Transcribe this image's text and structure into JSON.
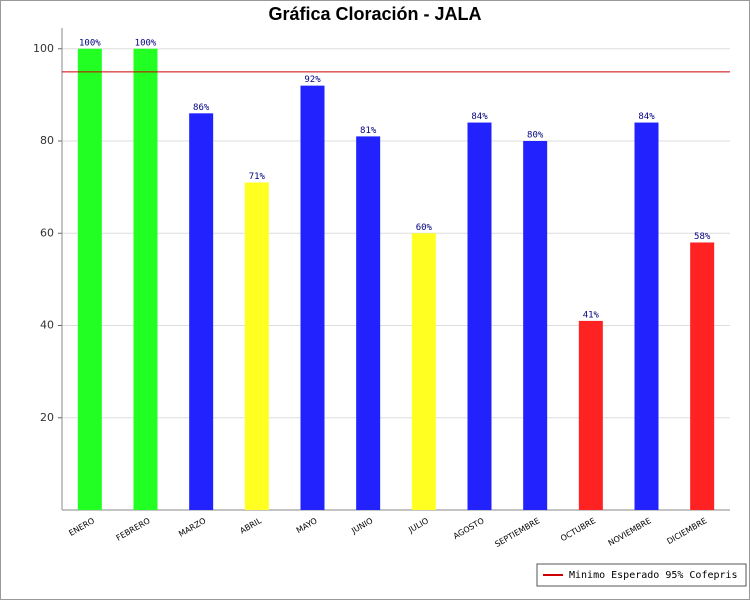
{
  "chart_data": {
    "type": "bar",
    "title": "Gráfica Cloración - JALA",
    "categories": [
      "ENERO",
      "FEBRERO",
      "MARZO",
      "ABRIL",
      "MAYO",
      "JUNIO",
      "JULIO",
      "AGOSTO",
      "SEPTIEMBRE",
      "OCTUBRE",
      "NOVIEMBRE",
      "DICIEMBRE"
    ],
    "values": [
      100,
      100,
      86,
      71,
      92,
      81,
      60,
      84,
      80,
      41,
      84,
      58
    ],
    "value_labels": [
      "100%",
      "100%",
      "86%",
      "71%",
      "92%",
      "81%",
      "60%",
      "84%",
      "80%",
      "41%",
      "84%",
      "58%"
    ],
    "colors": [
      "#22ff22",
      "#22ff22",
      "#2222ff",
      "#ffff22",
      "#2222ff",
      "#2222ff",
      "#ffff22",
      "#2222ff",
      "#2222ff",
      "#ff2222",
      "#2222ff",
      "#ff2222"
    ],
    "ylim": [
      0,
      104.5
    ],
    "yticks": [
      20,
      40,
      60,
      80,
      100
    ],
    "grid": true,
    "reference_line": {
      "value": 95,
      "color": "#cc0000",
      "label": "Minimo Esperado 95% Cofepris"
    },
    "legend_position": "bottom-right"
  }
}
